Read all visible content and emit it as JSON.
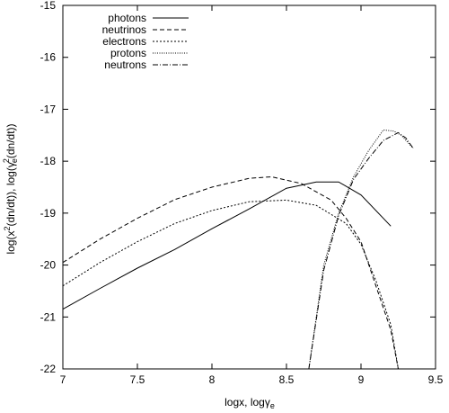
{
  "chart_data": {
    "type": "line",
    "title": "",
    "xlabel": {
      "main": "logx, log",
      "gamma": "γ",
      "sub": "e"
    },
    "ylabel": {
      "p1": "log(x",
      "sup1": "2",
      "p2": "(dn/dt)), log(",
      "gamma": "γ",
      "sub": "e",
      "sup2": "2",
      "p3": "(dn/dt))"
    },
    "xlim": [
      7,
      9.5
    ],
    "ylim": [
      -22,
      -15
    ],
    "xticks": [
      7,
      7.5,
      8,
      8.5,
      9,
      9.5
    ],
    "xtick_labels": [
      "7",
      "7.5",
      "8",
      "8.5",
      "9",
      "9.5"
    ],
    "yticks": [
      -22,
      -21,
      -20,
      -19,
      -18,
      -17,
      -16,
      -15
    ],
    "ytick_labels": [
      "-22",
      "-21",
      "-20",
      "-19",
      "-18",
      "-17",
      "-16",
      "-15"
    ],
    "grid": false,
    "legend_position": "top-left",
    "series": [
      {
        "name": "photons",
        "dash": "solid",
        "x": [
          7.0,
          7.25,
          7.5,
          7.75,
          8.0,
          8.25,
          8.5,
          8.7,
          8.85,
          9.0,
          9.2
        ],
        "y": [
          -20.85,
          -20.45,
          -20.06,
          -19.7,
          -19.3,
          -18.92,
          -18.52,
          -18.4,
          -18.4,
          -18.65,
          -19.25
        ]
      },
      {
        "name": "neutrinos",
        "dash": "dashed",
        "x": [
          7.0,
          7.25,
          7.5,
          7.75,
          8.0,
          8.25,
          8.4,
          8.6,
          8.8,
          8.9,
          9.0,
          9.1,
          9.2,
          9.25
        ],
        "y": [
          -19.95,
          -19.5,
          -19.1,
          -18.74,
          -18.5,
          -18.33,
          -18.3,
          -18.43,
          -18.75,
          -19.1,
          -19.55,
          -20.4,
          -21.25,
          -22.0
        ]
      },
      {
        "name": "electrons",
        "dash": "dotted",
        "x": [
          7.0,
          7.25,
          7.5,
          7.75,
          8.0,
          8.25,
          8.5,
          8.7,
          8.9,
          9.0,
          9.1,
          9.2,
          9.25
        ],
        "y": [
          -20.4,
          -19.95,
          -19.55,
          -19.2,
          -18.95,
          -18.78,
          -18.75,
          -18.85,
          -19.2,
          -19.6,
          -20.3,
          -21.15,
          -22.0
        ]
      },
      {
        "name": "protons",
        "dash": "fine-dotted",
        "x": [
          8.65,
          8.75,
          8.85,
          8.95,
          9.05,
          9.15,
          9.22,
          9.27,
          9.35
        ],
        "y": [
          -22.0,
          -20.0,
          -19.0,
          -18.3,
          -17.8,
          -17.4,
          -17.42,
          -17.5,
          -17.75
        ]
      },
      {
        "name": "neutrons",
        "dash": "dash-dot",
        "x": [
          8.65,
          8.75,
          8.85,
          8.95,
          9.05,
          9.15,
          9.25,
          9.3,
          9.35
        ],
        "y": [
          -22.0,
          -20.1,
          -19.05,
          -18.35,
          -17.95,
          -17.6,
          -17.45,
          -17.55,
          -17.75
        ]
      }
    ]
  }
}
